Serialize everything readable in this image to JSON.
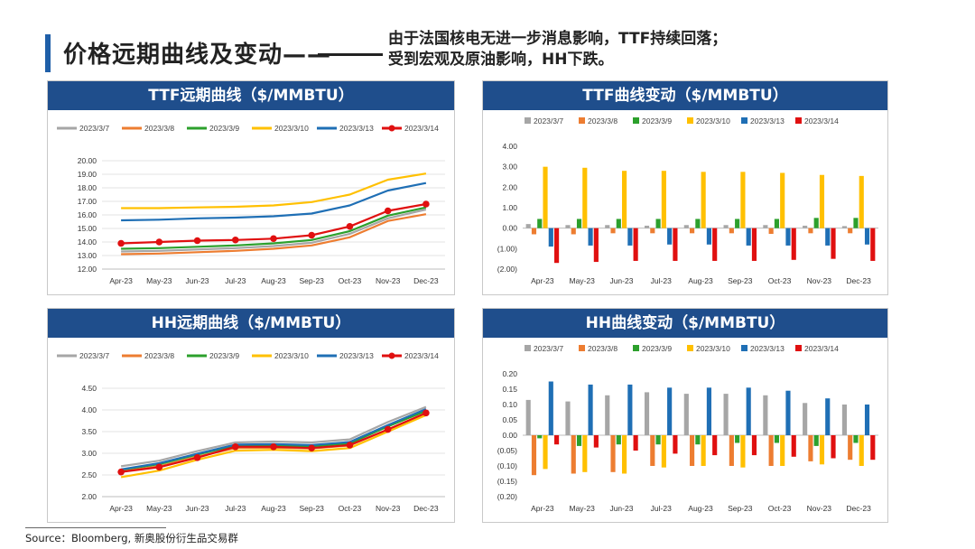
{
  "page": {
    "title": "价格远期曲线及变动——",
    "note_line1": "由于法国核电无进一步消息影响，TTF持续回落；",
    "note_line2": "受到宏观及原油影响，HH下跌。",
    "source": "Source：Bloomberg, 新奥股份衍生品交易群"
  },
  "colors": {
    "header": "#1f4e8c",
    "accent": "#1f5fa8",
    "s_0307": "#a6a6a6",
    "s_0308": "#ed7d31",
    "s_0309": "#2ca02c",
    "s_0310": "#ffc000",
    "s_0313": "#1f6fb5",
    "s_0314": "#e01010"
  },
  "chart_data": [
    {
      "id": "ttf_curve",
      "type": "line",
      "title": "TTF远期曲线（$/MMBTU）",
      "categories": [
        "Apr-23",
        "May-23",
        "Jun-23",
        "Jul-23",
        "Aug-23",
        "Sep-23",
        "Oct-23",
        "Nov-23",
        "Dec-23"
      ],
      "ylim": [
        12,
        20
      ],
      "yticks": [
        "12.00",
        "13.00",
        "14.00",
        "15.00",
        "16.00",
        "17.00",
        "18.00",
        "19.00",
        "20.00"
      ],
      "series": [
        {
          "name": "2023/3/7",
          "color": "#a6a6a6",
          "values": [
            13.3,
            13.35,
            13.45,
            13.55,
            13.7,
            13.95,
            14.6,
            15.75,
            16.4
          ]
        },
        {
          "name": "2023/3/8",
          "color": "#ed7d31",
          "values": [
            13.1,
            13.15,
            13.25,
            13.35,
            13.5,
            13.75,
            14.35,
            15.55,
            16.05
          ]
        },
        {
          "name": "2023/3/9",
          "color": "#2ca02c",
          "values": [
            13.5,
            13.55,
            13.65,
            13.75,
            13.9,
            14.15,
            14.8,
            15.95,
            16.55
          ]
        },
        {
          "name": "2023/3/10",
          "color": "#ffc000",
          "values": [
            16.5,
            16.5,
            16.55,
            16.6,
            16.7,
            16.95,
            17.5,
            18.6,
            19.05
          ]
        },
        {
          "name": "2023/3/13",
          "color": "#1f6fb5",
          "values": [
            15.6,
            15.65,
            15.75,
            15.8,
            15.9,
            16.1,
            16.7,
            17.8,
            18.35
          ]
        },
        {
          "name": "2023/3/14",
          "color": "#e01010",
          "values": [
            13.9,
            14.0,
            14.1,
            14.15,
            14.25,
            14.5,
            15.15,
            16.3,
            16.8
          ],
          "markers": true
        }
      ]
    },
    {
      "id": "ttf_change",
      "type": "bar",
      "title": "TTF曲线变动（$/MMBTU）",
      "categories": [
        "Apr-23",
        "May-23",
        "Jun-23",
        "Jul-23",
        "Aug-23",
        "Sep-23",
        "Oct-23",
        "Nov-23",
        "Dec-23"
      ],
      "ylim": [
        -2,
        4
      ],
      "yticks": [
        "(2.00)",
        "(1.00)",
        "0.00",
        "1.00",
        "2.00",
        "3.00",
        "4.00"
      ],
      "series": [
        {
          "name": "2023/3/7",
          "color": "#a6a6a6",
          "values": [
            0.2,
            0.15,
            0.15,
            0.12,
            0.15,
            0.15,
            0.15,
            0.12,
            0.1
          ]
        },
        {
          "name": "2023/3/8",
          "color": "#ed7d31",
          "values": [
            -0.3,
            -0.3,
            -0.25,
            -0.25,
            -0.25,
            -0.25,
            -0.28,
            -0.25,
            -0.25
          ]
        },
        {
          "name": "2023/3/9",
          "color": "#2ca02c",
          "values": [
            0.45,
            0.45,
            0.45,
            0.45,
            0.45,
            0.45,
            0.45,
            0.5,
            0.5
          ]
        },
        {
          "name": "2023/3/10",
          "color": "#ffc000",
          "values": [
            3.0,
            2.95,
            2.8,
            2.8,
            2.75,
            2.75,
            2.7,
            2.6,
            2.55
          ]
        },
        {
          "name": "2023/3/13",
          "color": "#1f6fb5",
          "values": [
            -0.9,
            -0.85,
            -0.85,
            -0.8,
            -0.8,
            -0.85,
            -0.85,
            -0.85,
            -0.8
          ]
        },
        {
          "name": "2023/3/14",
          "color": "#e01010",
          "values": [
            -1.7,
            -1.65,
            -1.6,
            -1.6,
            -1.6,
            -1.6,
            -1.55,
            -1.5,
            -1.6
          ]
        }
      ]
    },
    {
      "id": "hh_curve",
      "type": "line",
      "title": "HH远期曲线（$/MMBTU）",
      "categories": [
        "Apr-23",
        "May-23",
        "Jun-23",
        "Jul-23",
        "Aug-23",
        "Sep-23",
        "Oct-23",
        "Nov-23",
        "Dec-23"
      ],
      "ylim": [
        2,
        4.5
      ],
      "yticks": [
        "2.00",
        "2.50",
        "3.00",
        "3.50",
        "4.00",
        "4.50"
      ],
      "series": [
        {
          "name": "2023/3/7",
          "color": "#a6a6a6",
          "values": [
            2.7,
            2.83,
            3.05,
            3.25,
            3.27,
            3.25,
            3.32,
            3.72,
            4.07
          ]
        },
        {
          "name": "2023/3/8",
          "color": "#ed7d31",
          "values": [
            2.58,
            2.7,
            2.92,
            3.12,
            3.13,
            3.11,
            3.18,
            3.55,
            3.93
          ]
        },
        {
          "name": "2023/3/9",
          "color": "#2ca02c",
          "values": [
            2.62,
            2.75,
            2.97,
            3.18,
            3.18,
            3.16,
            3.23,
            3.62,
            3.98
          ]
        },
        {
          "name": "2023/3/10",
          "color": "#ffc000",
          "values": [
            2.45,
            2.6,
            2.85,
            3.06,
            3.08,
            3.05,
            3.12,
            3.5,
            3.88
          ]
        },
        {
          "name": "2023/3/13",
          "color": "#1f6fb5",
          "values": [
            2.63,
            2.77,
            2.99,
            3.2,
            3.21,
            3.19,
            3.26,
            3.65,
            4.02
          ]
        },
        {
          "name": "2023/3/14",
          "color": "#e01010",
          "values": [
            2.57,
            2.68,
            2.9,
            3.15,
            3.15,
            3.12,
            3.19,
            3.55,
            3.93
          ],
          "markers": true
        }
      ]
    },
    {
      "id": "hh_change",
      "type": "bar",
      "title": "HH曲线变动（$/MMBTU）",
      "categories": [
        "Apr-23",
        "May-23",
        "Jun-23",
        "Jul-23",
        "Aug-23",
        "Sep-23",
        "Oct-23",
        "Nov-23",
        "Dec-23"
      ],
      "ylim": [
        -0.2,
        0.2
      ],
      "yticks": [
        "(0.20)",
        "(0.15)",
        "(0.10)",
        "(0.05)",
        "0.00",
        "0.05",
        "0.10",
        "0.15",
        "0.20"
      ],
      "series": [
        {
          "name": "2023/3/7",
          "color": "#a6a6a6",
          "values": [
            0.115,
            0.11,
            0.13,
            0.14,
            0.135,
            0.135,
            0.13,
            0.105,
            0.1
          ]
        },
        {
          "name": "2023/3/8",
          "color": "#ed7d31",
          "values": [
            -0.13,
            -0.125,
            -0.12,
            -0.1,
            -0.1,
            -0.1,
            -0.1,
            -0.085,
            -0.08
          ]
        },
        {
          "name": "2023/3/9",
          "color": "#2ca02c",
          "values": [
            -0.01,
            -0.035,
            -0.03,
            -0.03,
            -0.03,
            -0.025,
            -0.025,
            -0.035,
            -0.025
          ]
        },
        {
          "name": "2023/3/10",
          "color": "#ffc000",
          "values": [
            -0.11,
            -0.12,
            -0.125,
            -0.105,
            -0.1,
            -0.105,
            -0.1,
            -0.095,
            -0.1
          ]
        },
        {
          "name": "2023/3/13",
          "color": "#1f6fb5",
          "values": [
            0.175,
            0.165,
            0.165,
            0.155,
            0.155,
            0.155,
            0.145,
            0.12,
            0.1
          ]
        },
        {
          "name": "2023/3/14",
          "color": "#e01010",
          "values": [
            -0.03,
            -0.04,
            -0.05,
            -0.06,
            -0.065,
            -0.065,
            -0.07,
            -0.075,
            -0.08
          ]
        }
      ]
    }
  ]
}
